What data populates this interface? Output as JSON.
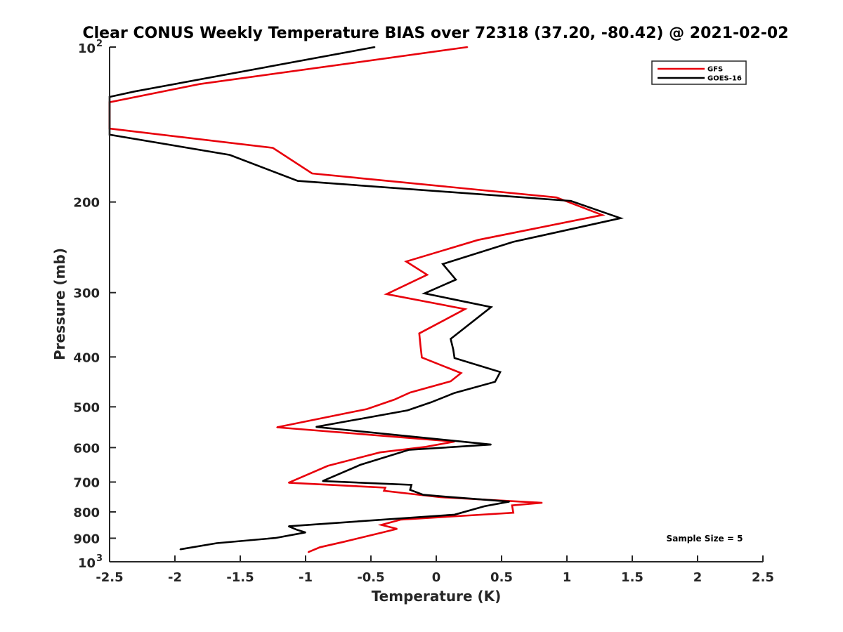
{
  "chart_data": {
    "type": "line",
    "title": "Clear CONUS Weekly Temperature BIAS over 72318 (37.20, -80.42) @ 2021-02-02",
    "xlabel": "Temperature (K)",
    "ylabel": "Pressure (mb)",
    "xlim": [
      -2.5,
      2.5
    ],
    "ylim": [
      100,
      1000
    ],
    "yscale": "log",
    "yreversed": true,
    "grid": false,
    "legend_position": "top-right",
    "xticks": [
      "-2.5",
      "-2",
      "-1.5",
      "-1",
      "-0.5",
      "0",
      "0.5",
      "1",
      "1.5",
      "2",
      "2.5"
    ],
    "xtick_values": [
      -2.5,
      -2,
      -1.5,
      -1,
      -0.5,
      0,
      0.5,
      1,
      1.5,
      2,
      2.5
    ],
    "yticks": [
      {
        "value": 100,
        "base": "10",
        "exp": "2"
      },
      {
        "value": 200,
        "base": "200",
        "exp": ""
      },
      {
        "value": 300,
        "base": "300",
        "exp": ""
      },
      {
        "value": 400,
        "base": "400",
        "exp": ""
      },
      {
        "value": 500,
        "base": "500",
        "exp": ""
      },
      {
        "value": 600,
        "base": "600",
        "exp": ""
      },
      {
        "value": 700,
        "base": "700",
        "exp": ""
      },
      {
        "value": 800,
        "base": "800",
        "exp": ""
      },
      {
        "value": 900,
        "base": "900",
        "exp": ""
      },
      {
        "value": 1000,
        "base": "10",
        "exp": "3"
      }
    ],
    "annotation": "Sample Size = 5",
    "series": [
      {
        "name": "GFS",
        "color": "#e8000b",
        "points": [
          [
            0.24,
            100
          ],
          [
            -1.81,
            118
          ],
          [
            -2.5,
            128
          ],
          [
            -2.5,
            144
          ],
          [
            -1.25,
            157
          ],
          [
            -0.95,
            176
          ],
          [
            0.92,
            196
          ],
          [
            1.27,
            212
          ],
          [
            0.32,
            237
          ],
          [
            -0.23,
            261
          ],
          [
            -0.07,
            277
          ],
          [
            -0.38,
            302
          ],
          [
            0.22,
            323
          ],
          [
            -0.13,
            360
          ],
          [
            -0.12,
            382
          ],
          [
            -0.11,
            401
          ],
          [
            0.19,
            430
          ],
          [
            0.11,
            446
          ],
          [
            -0.2,
            469
          ],
          [
            -0.32,
            484
          ],
          [
            -0.53,
            505
          ],
          [
            -1.22,
            548
          ],
          [
            0.14,
            584
          ],
          [
            -0.08,
            598
          ],
          [
            -0.43,
            613
          ],
          [
            -0.83,
            651
          ],
          [
            -1.13,
            702
          ],
          [
            -0.39,
            718
          ],
          [
            -0.4,
            728
          ],
          [
            0.03,
            749
          ],
          [
            0.81,
            768
          ],
          [
            0.58,
            777
          ],
          [
            0.59,
            803
          ],
          [
            -0.27,
            828
          ],
          [
            -0.42,
            848
          ],
          [
            -0.3,
            863
          ],
          [
            -0.42,
            878
          ],
          [
            -0.71,
            915
          ],
          [
            -0.89,
            937
          ],
          [
            -0.98,
            958
          ]
        ]
      },
      {
        "name": "GOES-16",
        "color": "#000000",
        "points": [
          [
            -0.47,
            100
          ],
          [
            -2.31,
            122
          ],
          [
            -2.5,
            125
          ],
          [
            -2.5,
            148
          ],
          [
            -1.58,
            162
          ],
          [
            -1.06,
            182
          ],
          [
            1.03,
            199
          ],
          [
            1.41,
            215
          ],
          [
            0.59,
            239
          ],
          [
            0.05,
            264
          ],
          [
            0.15,
            283
          ],
          [
            -0.09,
            301
          ],
          [
            0.42,
            320
          ],
          [
            0.11,
            369
          ],
          [
            0.13,
            387
          ],
          [
            0.14,
            402
          ],
          [
            0.49,
            428
          ],
          [
            0.45,
            447
          ],
          [
            0.14,
            470
          ],
          [
            -0.04,
            490
          ],
          [
            -0.22,
            508
          ],
          [
            -0.92,
            547
          ],
          [
            0.42,
            592
          ],
          [
            -0.21,
            606
          ],
          [
            -0.58,
            648
          ],
          [
            -0.87,
            697
          ],
          [
            -0.19,
            709
          ],
          [
            -0.2,
            725
          ],
          [
            -0.1,
            741
          ],
          [
            0.09,
            748
          ],
          [
            0.56,
            764
          ],
          [
            0.37,
            780
          ],
          [
            0.14,
            810
          ],
          [
            -1.13,
            853
          ],
          [
            -1.07,
            866
          ],
          [
            -1.0,
            877
          ],
          [
            -1.23,
            899
          ],
          [
            -1.68,
            920
          ],
          [
            -1.96,
            946
          ]
        ]
      }
    ]
  }
}
